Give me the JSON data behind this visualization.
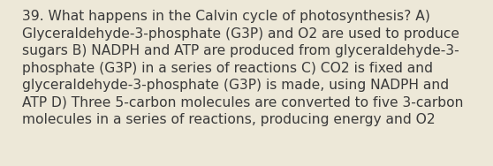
{
  "lines": [
    "39. What happens in the Calvin cycle of photosynthesis? A)",
    "Glyceraldehyde-3-phosphate (G3P) and O2 are used to produce",
    "sugars B) NADPH and ATP are produced from glyceraldehyde-3-",
    "phosphate (G3P) in a series of reactions C) CO2 is fixed and",
    "glyceraldehyde-3-phosphate (G3P) is made, using NADPH and",
    "ATP D) Three 5-carbon molecules are converted to five 3-carbon",
    "molecules in a series of reactions, producing energy and O2"
  ],
  "background_color": "#ede8d8",
  "text_color": "#3a3a3a",
  "font_size": 11.2,
  "fig_width": 5.58,
  "fig_height": 1.88,
  "dpi": 100
}
